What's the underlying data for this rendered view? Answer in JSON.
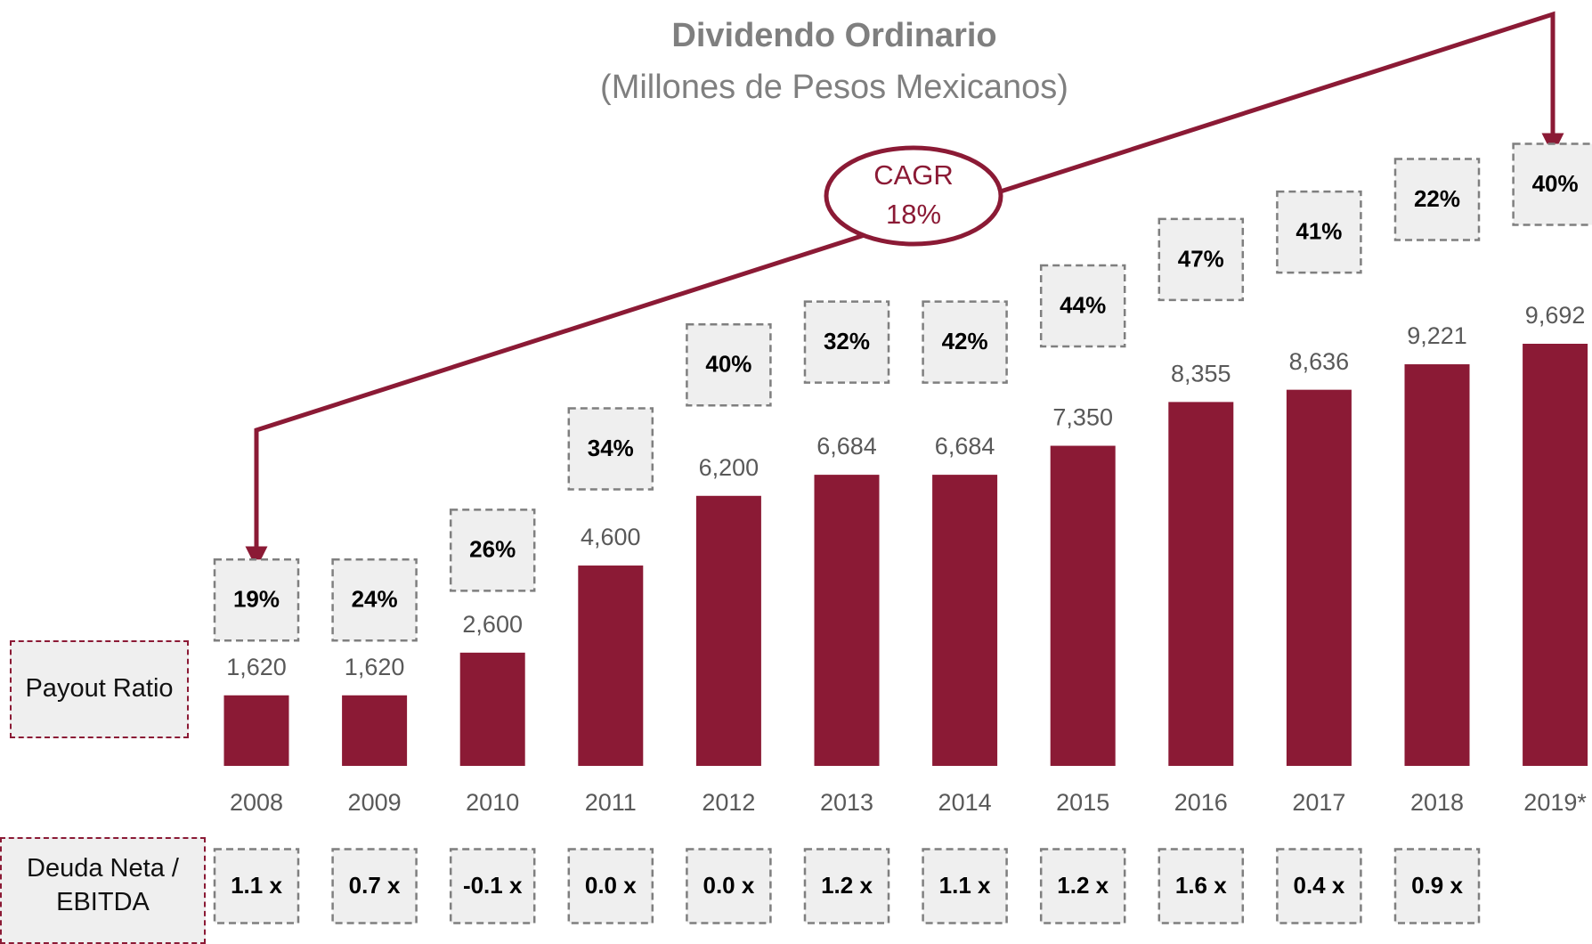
{
  "chart_data": {
    "type": "bar",
    "title": "Dividendo Ordinario",
    "subtitle": "(Millones de Pesos Mexicanos)",
    "categories": [
      "2008",
      "2009",
      "2010",
      "2011",
      "2012",
      "2013",
      "2014",
      "2015",
      "2016",
      "2017",
      "2018",
      "2019*"
    ],
    "values": [
      1620,
      1620,
      2600,
      4600,
      6200,
      6684,
      6684,
      7350,
      8355,
      8636,
      9221,
      9692
    ],
    "value_labels": [
      "1,620",
      "1,620",
      "2,600",
      "4,600",
      "6,200",
      "6,684",
      "6,684",
      "7,350",
      "8,355",
      "8,636",
      "9,221",
      "9,692"
    ],
    "color": "#8b1a35",
    "payout_ratio": {
      "label": "Payout Ratio",
      "values": [
        19,
        24,
        26,
        34,
        40,
        32,
        42,
        44,
        47,
        41,
        22,
        40
      ],
      "value_labels": [
        "19%",
        "24%",
        "26%",
        "34%",
        "40%",
        "32%",
        "42%",
        "44%",
        "47%",
        "41%",
        "22%",
        "40%"
      ]
    },
    "net_debt_ebitda": {
      "label": "Deuda Neta / EBITDA",
      "values": [
        1.1,
        0.7,
        -0.1,
        0.0,
        0.0,
        1.2,
        1.1,
        1.2,
        1.6,
        0.4,
        0.9,
        null
      ],
      "value_labels": [
        "1.1 x",
        "0.7 x",
        "-0.1 x",
        "0.0 x",
        "0.0 x",
        "1.2 x",
        "1.1 x",
        "1.2 x",
        "1.6 x",
        "0.4 x",
        "0.9 x",
        null
      ]
    },
    "annotation": {
      "text": "CAGR",
      "value": 18,
      "value_label": "18%"
    }
  }
}
